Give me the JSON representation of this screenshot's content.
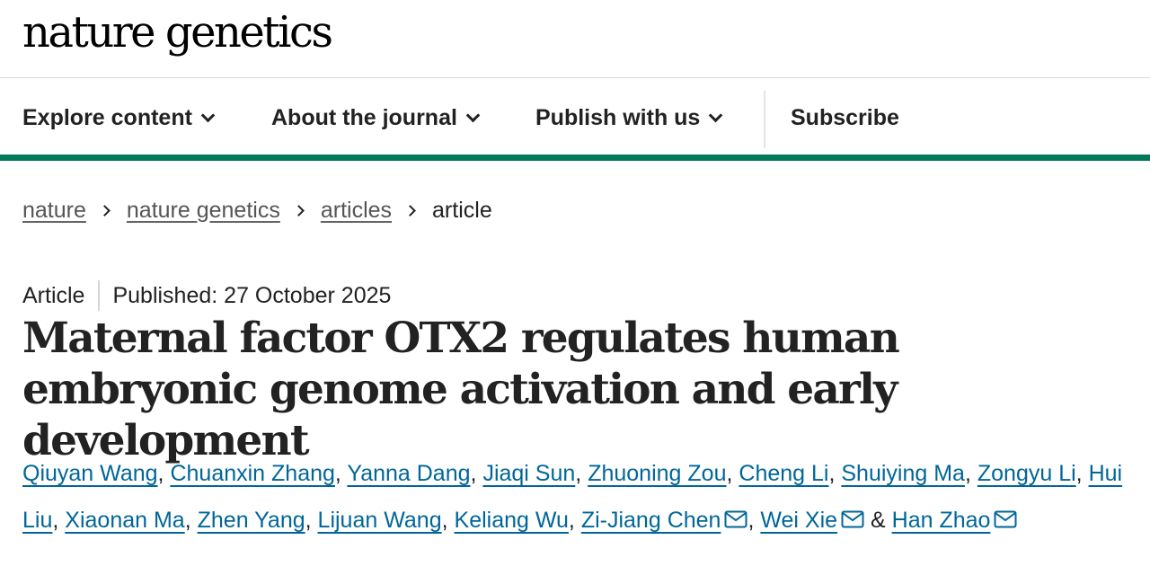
{
  "header": {
    "logo_text": "nature genetics"
  },
  "nav": {
    "explore": "Explore content",
    "about": "About the journal",
    "publish": "Publish with us",
    "subscribe": "Subscribe",
    "chevron_icon": "chevron-down-icon"
  },
  "breadcrumb": {
    "items": [
      "nature",
      "nature genetics",
      "articles"
    ],
    "current": "article"
  },
  "article": {
    "type": "Article",
    "published": "Published: 27 October 2025",
    "title": "Maternal factor OTX2 regulates human embryonic genome activation and early development"
  },
  "authors": [
    {
      "name": "Qiuyan Wang"
    },
    {
      "name": "Chuanxin Zhang"
    },
    {
      "name": "Yanna Dang"
    },
    {
      "name": "Jiaqi Sun"
    },
    {
      "name": "Zhuoning Zou"
    },
    {
      "name": "Cheng Li"
    },
    {
      "name": "Shuiying Ma"
    },
    {
      "name": "Zongyu Li"
    },
    {
      "name": "Hui Liu"
    },
    {
      "name": "Xiaonan Ma"
    },
    {
      "name": "Zhen Yang"
    },
    {
      "name": "Lijuan Wang"
    },
    {
      "name": "Keliang Wu"
    },
    {
      "name": "Zi-Jiang Chen",
      "corresponding": true
    },
    {
      "name": "Wei Xie",
      "corresponding": true
    },
    {
      "name": "Han Zhao",
      "corresponding": true
    }
  ],
  "authors_separator": ", ",
  "authors_last_joiner": " & ",
  "colors": {
    "accent_green": "#00795b",
    "link_blue": "#006699",
    "text": "#222222"
  }
}
